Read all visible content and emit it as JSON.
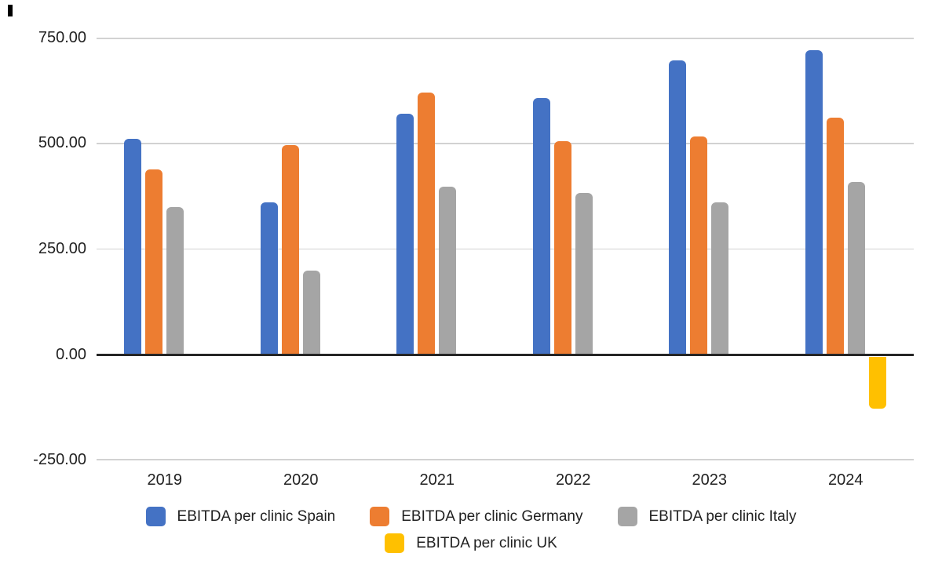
{
  "chart_data": {
    "type": "bar",
    "title": "",
    "categories": [
      "2019",
      "2020",
      "2021",
      "2022",
      "2023",
      "2024"
    ],
    "series": [
      {
        "name": "EBITDA per clinic Spain",
        "color": "#4472C4",
        "values": [
          512,
          360,
          570,
          607,
          697,
          721
        ]
      },
      {
        "name": "EBITDA per clinic Germany",
        "color": "#ED7D31",
        "values": [
          438,
          497,
          620,
          505,
          516,
          561
        ]
      },
      {
        "name": "EBITDA per clinic Italy",
        "color": "#A5A5A5",
        "values": [
          349,
          198,
          397,
          382,
          360,
          408
        ]
      },
      {
        "name": "EBITDA per clinic UK",
        "color": "#FFC000",
        "values": [
          0,
          0,
          0,
          0,
          0,
          -124
        ]
      }
    ],
    "y_axis": {
      "ticks": [
        "750.00",
        "500.00",
        "250.00",
        "0.00",
        "-250.00"
      ],
      "tick_values": [
        750,
        500,
        250,
        0,
        -250
      ],
      "min": -250,
      "max": 750,
      "grid": true,
      "gridline_color": "#d2d2d2",
      "zero_line_color": "#262626"
    },
    "legend_position": "bottom",
    "legend_rows": [
      [
        0,
        1,
        2
      ],
      [
        3
      ]
    ]
  }
}
